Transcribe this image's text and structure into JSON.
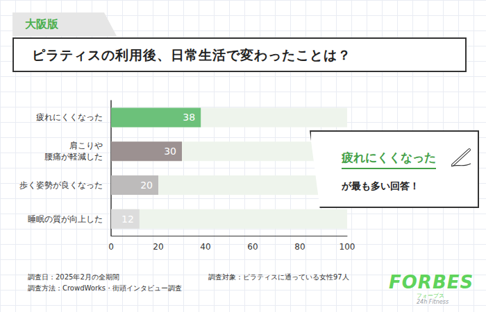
{
  "chart_data": {
    "type": "bar",
    "orientation": "horizontal",
    "title": "ピラティスの利用後、日常生活で変わったことは？",
    "categories": [
      "疲れにくくなった",
      "肩こりや\n腰痛が軽減した",
      "歩く姿勢が良くなった",
      "睡眠の質が向上した"
    ],
    "values": [
      38,
      30,
      20,
      12
    ],
    "colors": [
      "#6cc17a",
      "#9c9191",
      "#bdbbbb",
      "#dcdcdc"
    ],
    "xlim": [
      0,
      100
    ],
    "xticks": [
      0,
      20,
      40,
      60,
      80,
      100
    ],
    "grid": false,
    "data_labels": true,
    "annotations": {
      "tag": "大阪版",
      "callout_head": "疲れにくくなった",
      "callout_tail": "が最も多い回答！",
      "notes_left": [
        "調査日：2025年2月の全期間",
        "調査方法：CrowdWorks・街頭インタビュー調査"
      ],
      "notes_right": [
        "調査対象：ピラティスに通っている女性97人"
      ],
      "logo": [
        "FORBES",
        "フォーブス",
        "24h Fitness"
      ]
    }
  }
}
